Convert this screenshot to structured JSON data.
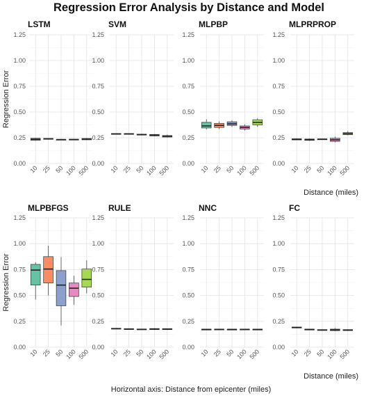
{
  "title": "Regression Error Analysis by Distance and Model",
  "caption": "Horizontal axis: Distance from epicenter (miles)",
  "colors": [
    "#66c2a5",
    "#fc8d62",
    "#8da0cb",
    "#e78ac3",
    "#a6d854"
  ],
  "chart_data": [
    {
      "type": "box",
      "title": "LSTM",
      "categories": [
        "10",
        "25",
        "50",
        "100",
        "500"
      ],
      "ylabel": "Regression Error",
      "xlabel": "",
      "ylim": [
        0,
        1.25
      ],
      "yticks": [
        "0.00",
        "0.25",
        "0.50",
        "0.75",
        "1.00",
        "1.25"
      ],
      "boxes": [
        {
          "min": 0.22,
          "q1": 0.225,
          "median": 0.235,
          "q3": 0.245,
          "max": 0.25
        },
        {
          "min": 0.232,
          "q1": 0.235,
          "median": 0.24,
          "q3": 0.243,
          "max": 0.245
        },
        {
          "min": 0.226,
          "q1": 0.229,
          "median": 0.232,
          "q3": 0.235,
          "max": 0.238
        },
        {
          "min": 0.228,
          "q1": 0.23,
          "median": 0.233,
          "q3": 0.236,
          "max": 0.238
        },
        {
          "min": 0.227,
          "q1": 0.23,
          "median": 0.237,
          "q3": 0.243,
          "max": 0.248
        }
      ]
    },
    {
      "type": "box",
      "title": "SVM",
      "categories": [
        "10",
        "25",
        "50",
        "100",
        "500"
      ],
      "ylabel": "",
      "xlabel": "",
      "ylim": [
        0,
        1.25
      ],
      "yticks": [
        "0.00",
        "0.25",
        "0.50",
        "0.75",
        "1.00",
        "1.25"
      ],
      "boxes": [
        {
          "min": 0.283,
          "q1": 0.285,
          "median": 0.288,
          "q3": 0.291,
          "max": 0.293
        },
        {
          "min": 0.283,
          "q1": 0.285,
          "median": 0.288,
          "q3": 0.291,
          "max": 0.293
        },
        {
          "min": 0.273,
          "q1": 0.276,
          "median": 0.281,
          "q3": 0.285,
          "max": 0.29
        },
        {
          "min": 0.264,
          "q1": 0.268,
          "median": 0.276,
          "q3": 0.282,
          "max": 0.287
        },
        {
          "min": 0.252,
          "q1": 0.257,
          "median": 0.263,
          "q3": 0.272,
          "max": 0.28
        }
      ]
    },
    {
      "type": "box",
      "title": "MLPBP",
      "categories": [
        "10",
        "25",
        "50",
        "100",
        "500"
      ],
      "ylabel": "",
      "xlabel": "",
      "ylim": [
        0,
        1.25
      ],
      "yticks": [
        "0.00",
        "0.25",
        "0.50",
        "0.75",
        "1.00",
        "1.25"
      ],
      "boxes": [
        {
          "min": 0.33,
          "q1": 0.345,
          "median": 0.365,
          "q3": 0.4,
          "max": 0.43
        },
        {
          "min": 0.335,
          "q1": 0.35,
          "median": 0.37,
          "q3": 0.39,
          "max": 0.41
        },
        {
          "min": 0.355,
          "q1": 0.37,
          "median": 0.385,
          "q3": 0.405,
          "max": 0.42
        },
        {
          "min": 0.32,
          "q1": 0.335,
          "median": 0.35,
          "q3": 0.365,
          "max": 0.38
        },
        {
          "min": 0.355,
          "q1": 0.375,
          "median": 0.4,
          "q3": 0.425,
          "max": 0.44
        }
      ]
    },
    {
      "type": "box",
      "title": "MLPRPROP",
      "categories": [
        "10",
        "25",
        "50",
        "100",
        "500"
      ],
      "ylabel": "",
      "xlabel": "Distance (miles)",
      "ylim": [
        0,
        1.25
      ],
      "yticks": [
        "0.00",
        "0.25",
        "0.50",
        "0.75",
        "1.00",
        "1.25"
      ],
      "boxes": [
        {
          "min": 0.226,
          "q1": 0.229,
          "median": 0.235,
          "q3": 0.24,
          "max": 0.245
        },
        {
          "min": 0.22,
          "q1": 0.225,
          "median": 0.232,
          "q3": 0.238,
          "max": 0.243
        },
        {
          "min": 0.23,
          "q1": 0.232,
          "median": 0.236,
          "q3": 0.239,
          "max": 0.241
        },
        {
          "min": 0.205,
          "q1": 0.215,
          "median": 0.23,
          "q3": 0.245,
          "max": 0.26
        },
        {
          "min": 0.272,
          "q1": 0.28,
          "median": 0.29,
          "q3": 0.3,
          "max": 0.315
        }
      ]
    },
    {
      "type": "box",
      "title": "MLPBFGS",
      "categories": [
        "10",
        "25",
        "50",
        "100",
        "500"
      ],
      "ylabel": "Regression Error",
      "xlabel": "",
      "ylim": [
        0,
        1.25
      ],
      "yticks": [
        "0.00",
        "0.25",
        "0.50",
        "0.75",
        "1.00",
        "1.25"
      ],
      "boxes": [
        {
          "min": 0.46,
          "q1": 0.6,
          "median": 0.745,
          "q3": 0.8,
          "max": 0.82
        },
        {
          "min": 0.5,
          "q1": 0.62,
          "median": 0.755,
          "q3": 0.875,
          "max": 0.98
        },
        {
          "min": 0.21,
          "q1": 0.4,
          "median": 0.6,
          "q3": 0.74,
          "max": 0.87
        },
        {
          "min": 0.41,
          "q1": 0.49,
          "median": 0.57,
          "q3": 0.62,
          "max": 0.69
        },
        {
          "min": 0.52,
          "q1": 0.58,
          "median": 0.655,
          "q3": 0.755,
          "max": 0.84
        }
      ]
    },
    {
      "type": "box",
      "title": "RULE",
      "categories": [
        "10",
        "25",
        "50",
        "100",
        "500"
      ],
      "ylabel": "",
      "xlabel": "",
      "ylim": [
        0,
        1.25
      ],
      "yticks": [
        "0.00",
        "0.25",
        "0.50",
        "0.75",
        "1.00",
        "1.25"
      ],
      "boxes": [
        {
          "min": 0.172,
          "q1": 0.175,
          "median": 0.179,
          "q3": 0.183,
          "max": 0.186
        },
        {
          "min": 0.168,
          "q1": 0.171,
          "median": 0.175,
          "q3": 0.179,
          "max": 0.182
        },
        {
          "min": 0.168,
          "q1": 0.17,
          "median": 0.173,
          "q3": 0.176,
          "max": 0.178
        },
        {
          "min": 0.166,
          "q1": 0.17,
          "median": 0.175,
          "q3": 0.18,
          "max": 0.184
        },
        {
          "min": 0.166,
          "q1": 0.17,
          "median": 0.175,
          "q3": 0.179,
          "max": 0.182
        }
      ]
    },
    {
      "type": "box",
      "title": "NNC",
      "categories": [
        "10",
        "25",
        "50",
        "100",
        "500"
      ],
      "ylabel": "",
      "xlabel": "",
      "ylim": [
        0,
        1.25
      ],
      "yticks": [
        "0.00",
        "0.25",
        "0.50",
        "0.75",
        "1.00",
        "1.25"
      ],
      "boxes": [
        {
          "min": 0.168,
          "q1": 0.17,
          "median": 0.172,
          "q3": 0.174,
          "max": 0.176
        },
        {
          "min": 0.168,
          "q1": 0.17,
          "median": 0.172,
          "q3": 0.175,
          "max": 0.177
        },
        {
          "min": 0.168,
          "q1": 0.17,
          "median": 0.172,
          "q3": 0.174,
          "max": 0.176
        },
        {
          "min": 0.168,
          "q1": 0.17,
          "median": 0.172,
          "q3": 0.175,
          "max": 0.177
        },
        {
          "min": 0.168,
          "q1": 0.17,
          "median": 0.172,
          "q3": 0.174,
          "max": 0.176
        }
      ]
    },
    {
      "type": "box",
      "title": "FC",
      "categories": [
        "10",
        "25",
        "50",
        "100",
        "500"
      ],
      "ylabel": "",
      "xlabel": "Distance (miles)",
      "ylim": [
        0,
        1.25
      ],
      "yticks": [
        "0.00",
        "0.25",
        "0.50",
        "0.75",
        "1.00",
        "1.25"
      ],
      "boxes": [
        {
          "min": 0.183,
          "q1": 0.186,
          "median": 0.19,
          "q3": 0.195,
          "max": 0.198
        },
        {
          "min": 0.168,
          "q1": 0.17,
          "median": 0.172,
          "q3": 0.174,
          "max": 0.176
        },
        {
          "min": 0.158,
          "q1": 0.162,
          "median": 0.166,
          "q3": 0.17,
          "max": 0.174
        },
        {
          "min": 0.155,
          "q1": 0.16,
          "median": 0.167,
          "q3": 0.175,
          "max": 0.185
        },
        {
          "min": 0.157,
          "q1": 0.161,
          "median": 0.165,
          "q3": 0.17,
          "max": 0.174
        }
      ]
    }
  ]
}
